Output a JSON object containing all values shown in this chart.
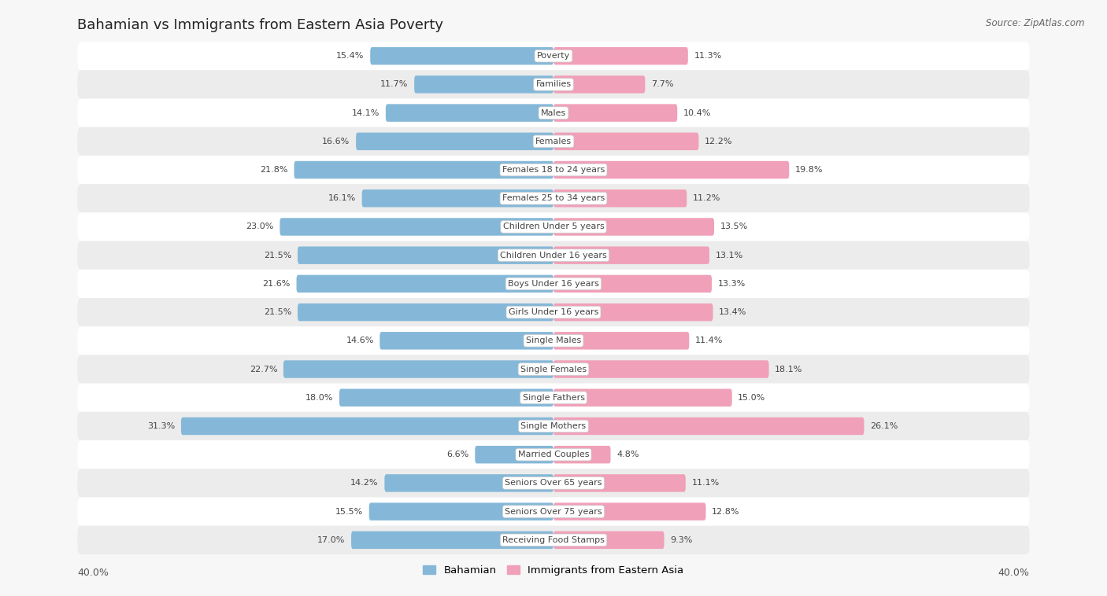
{
  "title": "Bahamian vs Immigrants from Eastern Asia Poverty",
  "source": "Source: ZipAtlas.com",
  "categories": [
    "Poverty",
    "Families",
    "Males",
    "Females",
    "Females 18 to 24 years",
    "Females 25 to 34 years",
    "Children Under 5 years",
    "Children Under 16 years",
    "Boys Under 16 years",
    "Girls Under 16 years",
    "Single Males",
    "Single Females",
    "Single Fathers",
    "Single Mothers",
    "Married Couples",
    "Seniors Over 65 years",
    "Seniors Over 75 years",
    "Receiving Food Stamps"
  ],
  "bahamian": [
    15.4,
    11.7,
    14.1,
    16.6,
    21.8,
    16.1,
    23.0,
    21.5,
    21.6,
    21.5,
    14.6,
    22.7,
    18.0,
    31.3,
    6.6,
    14.2,
    15.5,
    17.0
  ],
  "eastern_asia": [
    11.3,
    7.7,
    10.4,
    12.2,
    19.8,
    11.2,
    13.5,
    13.1,
    13.3,
    13.4,
    11.4,
    18.1,
    15.0,
    26.1,
    4.8,
    11.1,
    12.8,
    9.3
  ],
  "max_val": 40.0,
  "bar_color_blue": "#85b8d8",
  "bar_color_pink": "#f0a0b8",
  "bg_color": "#f7f7f7",
  "row_color_even": "#ffffff",
  "row_color_odd": "#ececec",
  "text_color": "#444444",
  "bar_height": 0.62,
  "legend_blue": "Bahamian",
  "legend_pink": "Immigrants from Eastern Asia",
  "axis_label_fontsize": 9,
  "title_fontsize": 13,
  "bar_label_fontsize": 8,
  "cat_label_fontsize": 8
}
